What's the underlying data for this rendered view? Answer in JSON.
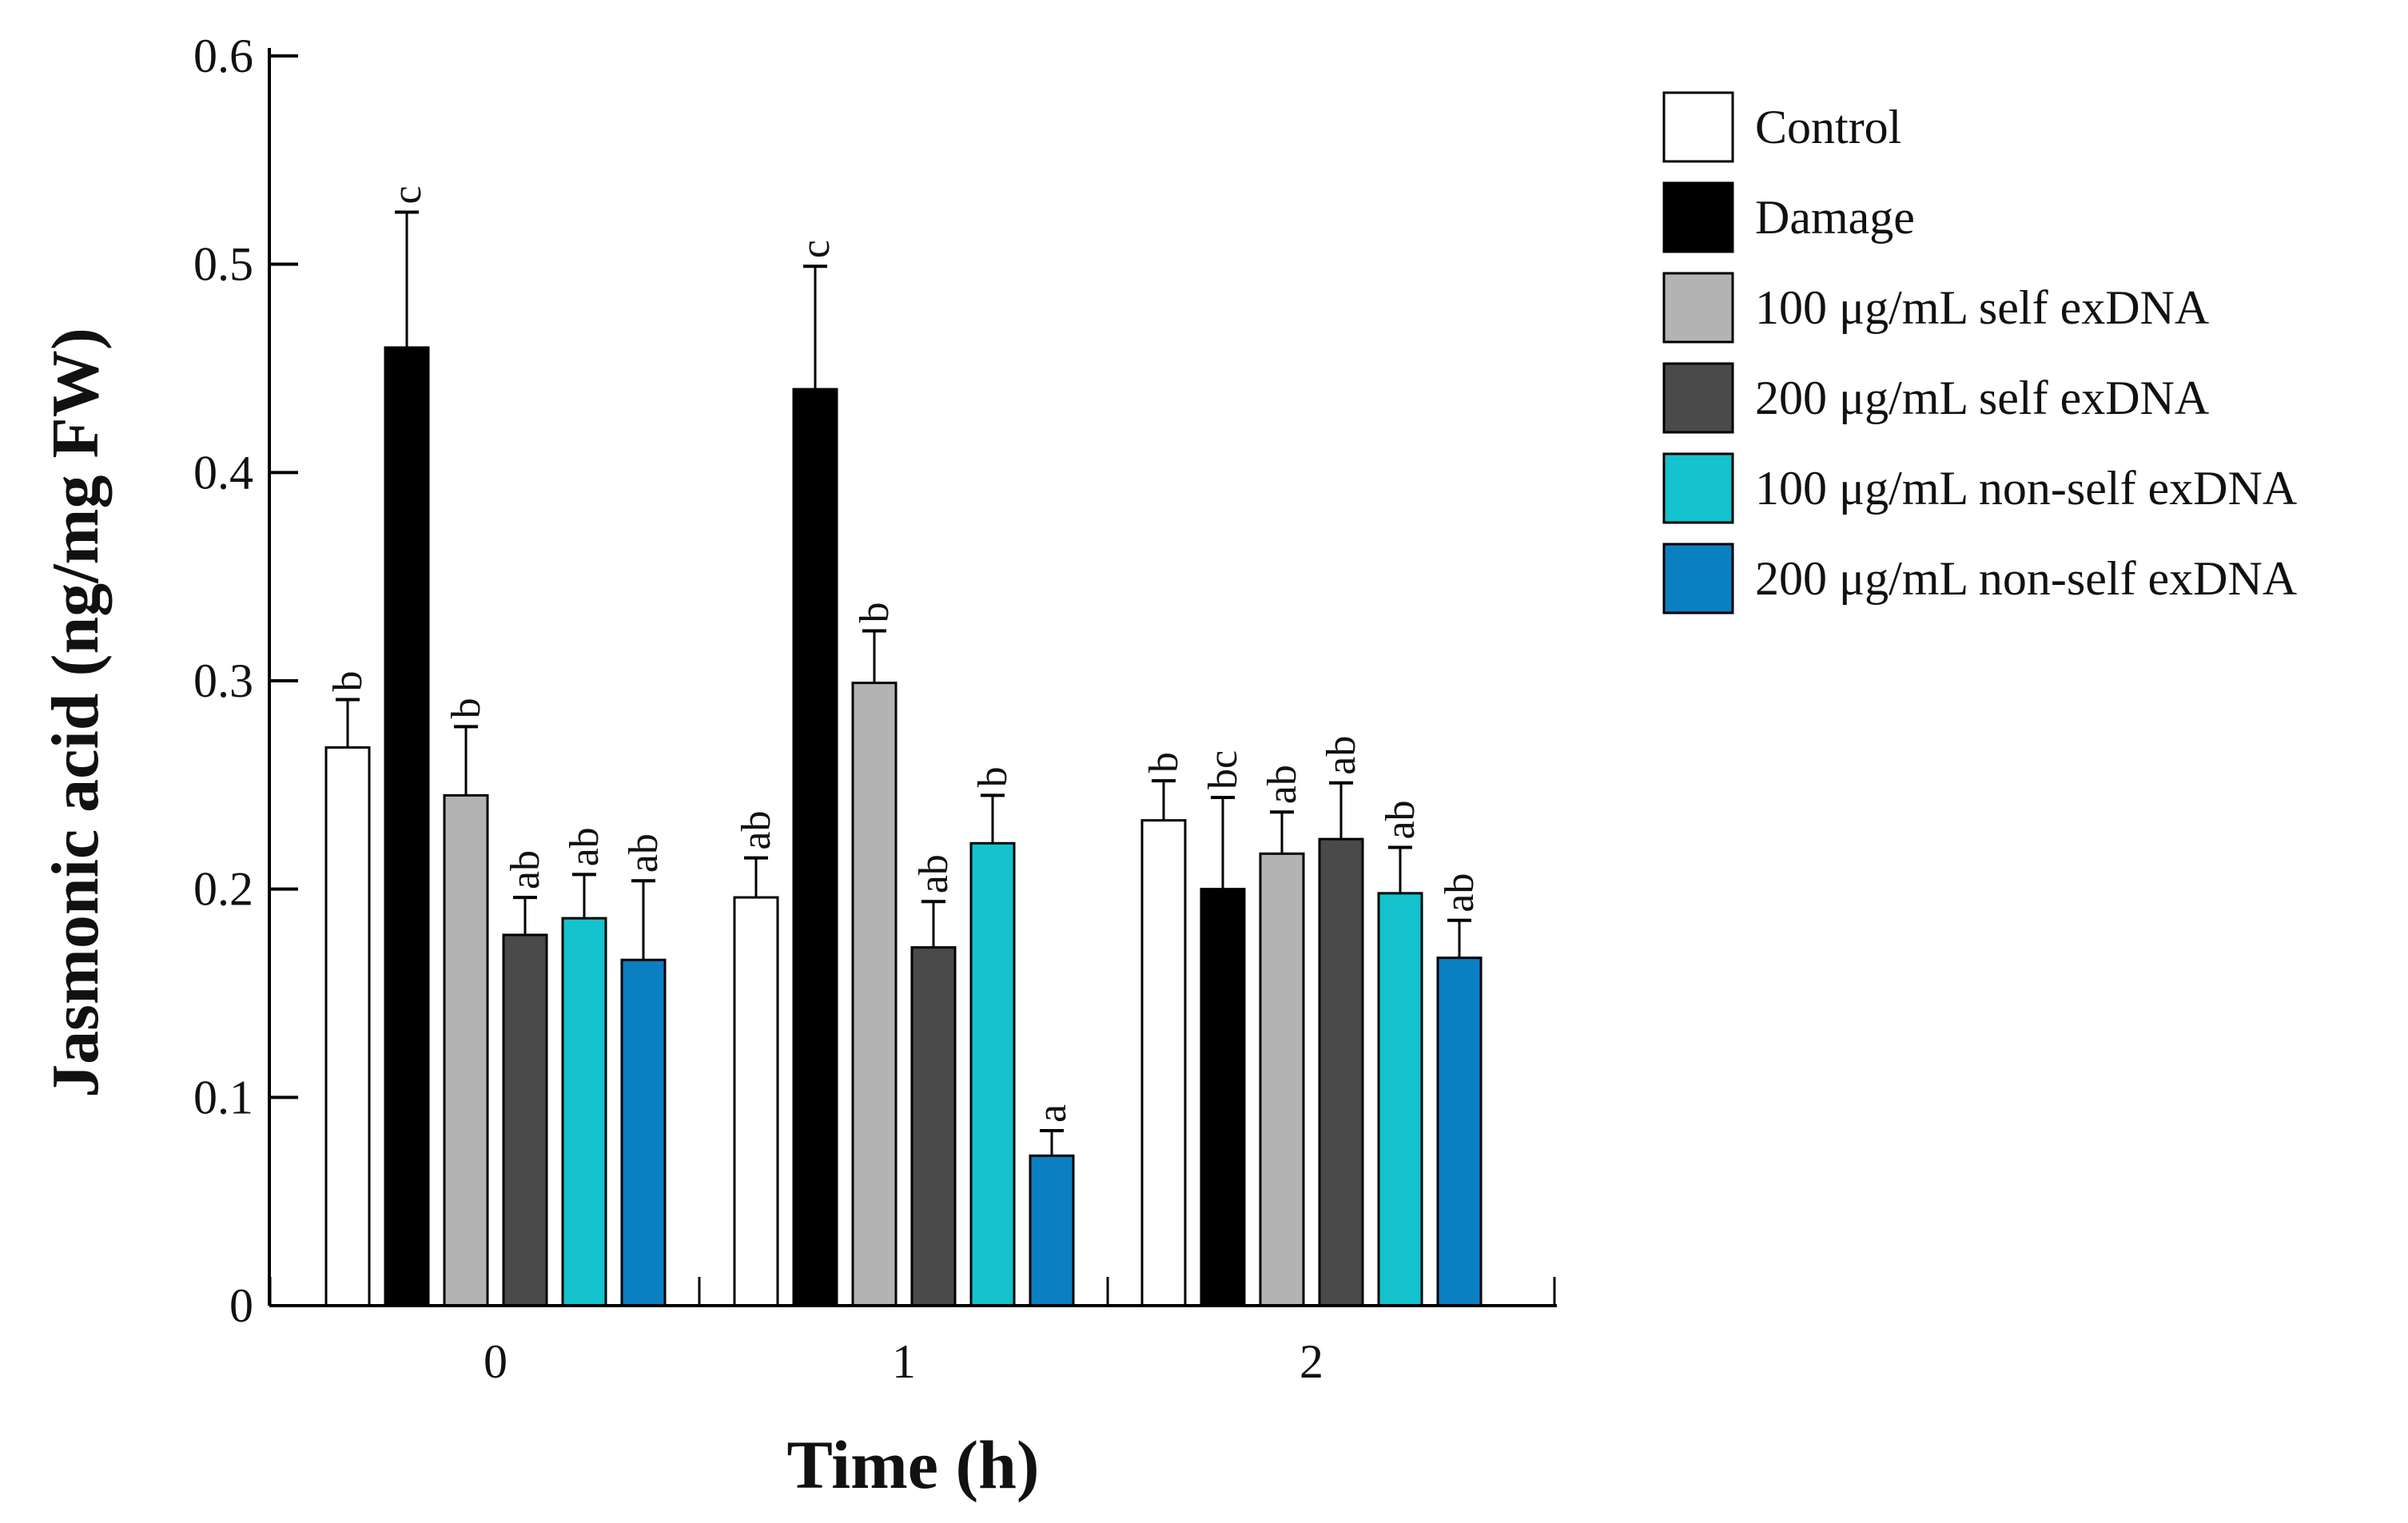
{
  "chart_data": {
    "type": "bar",
    "ylabel": "Jasmonic acid (ng/mg FW)",
    "xlabel": "Time (h)",
    "categories": [
      "0",
      "1",
      "2"
    ],
    "ylim": [
      0,
      0.6
    ],
    "yticks": [
      "0",
      "0.1",
      "0.2",
      "0.3",
      "0.4",
      "0.5",
      "0.6"
    ],
    "grid": false,
    "legend_position": "top-right",
    "series": [
      {
        "name": "Control",
        "color": "#ffffff",
        "values": [
          0.268,
          0.196,
          0.233
        ],
        "errors": [
          0.023,
          0.019,
          0.019
        ],
        "labels": [
          "b",
          "ab",
          "b"
        ]
      },
      {
        "name": "Damage",
        "color": "#000000",
        "values": [
          0.46,
          0.44,
          0.2
        ],
        "errors": [
          0.065,
          0.059,
          0.044
        ],
        "labels": [
          "c",
          "c",
          "bc"
        ]
      },
      {
        "name": "100 μg/mL self exDNA",
        "color": "#b3b3b3",
        "values": [
          0.245,
          0.299,
          0.217
        ],
        "errors": [
          0.033,
          0.025,
          0.02
        ],
        "labels": [
          "b",
          "b",
          "ab"
        ]
      },
      {
        "name": "200 μg/mL self exDNA",
        "color": "#4a4a4a",
        "values": [
          0.178,
          0.172,
          0.224
        ],
        "errors": [
          0.018,
          0.022,
          0.027
        ],
        "labels": [
          "ab",
          "ab",
          "ab"
        ]
      },
      {
        "name": "100 μg/mL non-self exDNA",
        "color": "#14c3cd",
        "values": [
          0.186,
          0.222,
          0.198
        ],
        "errors": [
          0.021,
          0.023,
          0.022
        ],
        "labels": [
          "ab",
          "b",
          "ab"
        ]
      },
      {
        "name": "200 μg/mL non-self exDNA",
        "color": "#0a7fc2",
        "values": [
          0.166,
          0.072,
          0.167
        ],
        "errors": [
          0.038,
          0.012,
          0.018
        ],
        "labels": [
          "ab",
          "a",
          "ab"
        ]
      }
    ]
  }
}
